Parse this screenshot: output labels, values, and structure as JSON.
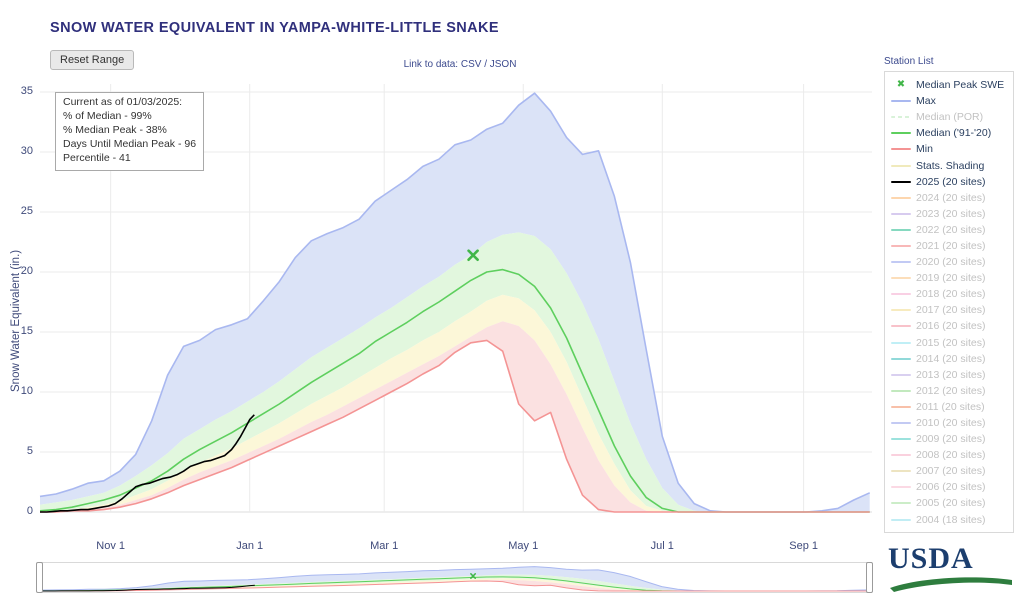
{
  "page": {
    "title": "SNOW WATER EQUIVALENT IN YAMPA-WHITE-LITTLE SNAKE",
    "reset_range_button": "Reset Range",
    "link_to_data_prefix": "Link to data:",
    "csv_link": "CSV",
    "link_separator": "/",
    "json_link": "JSON",
    "station_list_label": "Station List",
    "usda_logo_text": "USDA",
    "title_color": "#30307c",
    "accent_text_color": "#3c4a8e"
  },
  "annotation": {
    "lines": [
      "Current as of 01/03/2025:",
      "% of Median - 99%",
      "% Median Peak - 38%",
      "Days Until Median Peak - 96",
      "Percentile - 41"
    ]
  },
  "legend": {
    "items": [
      {
        "label": "Median Peak SWE",
        "marker": "x",
        "color": "#41b649",
        "active": true
      },
      {
        "label": "Max",
        "marker": "line",
        "color": "#a9b8f0",
        "active": true
      },
      {
        "label": "Median (POR)",
        "marker": "dash",
        "color": "#c9ecc9",
        "active": false
      },
      {
        "label": "Median ('91-'20)",
        "marker": "line",
        "color": "#5ecf5e",
        "active": true
      },
      {
        "label": "Min",
        "marker": "line",
        "color": "#f49494",
        "active": true
      },
      {
        "label": "Stats. Shading",
        "marker": "line",
        "color": "#f0eabc",
        "active": true
      },
      {
        "label": "2025 (20 sites)",
        "marker": "line",
        "color": "#000000",
        "active": true
      },
      {
        "label": "2024 (20 sites)",
        "marker": "line",
        "color": "#fcc48c",
        "active": false
      },
      {
        "label": "2023 (20 sites)",
        "marker": "line",
        "color": "#c6b5e8",
        "active": false
      },
      {
        "label": "2022 (20 sites)",
        "marker": "line",
        "color": "#52c9a5",
        "active": false
      },
      {
        "label": "2021 (20 sites)",
        "marker": "line",
        "color": "#f59a9a",
        "active": false
      },
      {
        "label": "2020 (20 sites)",
        "marker": "line",
        "color": "#a8b4f0",
        "active": false
      },
      {
        "label": "2019 (20 sites)",
        "marker": "line",
        "color": "#fbd09c",
        "active": false
      },
      {
        "label": "2018 (20 sites)",
        "marker": "line",
        "color": "#f6bcd8",
        "active": false
      },
      {
        "label": "2017 (20 sites)",
        "marker": "line",
        "color": "#f3e3a4",
        "active": false
      },
      {
        "label": "2016 (20 sites)",
        "marker": "line",
        "color": "#f5a8b4",
        "active": false
      },
      {
        "label": "2015 (20 sites)",
        "marker": "line",
        "color": "#a5e8f2",
        "active": false
      },
      {
        "label": "2014 (20 sites)",
        "marker": "line",
        "color": "#62c9c9",
        "active": false
      },
      {
        "label": "2013 (20 sites)",
        "marker": "line",
        "color": "#c9bce9",
        "active": false
      },
      {
        "label": "2012 (20 sites)",
        "marker": "line",
        "color": "#a8e0a2",
        "active": false
      },
      {
        "label": "2011 (20 sites)",
        "marker": "line",
        "color": "#f5a585",
        "active": false
      },
      {
        "label": "2010 (20 sites)",
        "marker": "line",
        "color": "#a9b4ee",
        "active": false
      },
      {
        "label": "2009 (20 sites)",
        "marker": "line",
        "color": "#72d5cf",
        "active": false
      },
      {
        "label": "2008 (20 sites)",
        "marker": "line",
        "color": "#f8bdd0",
        "active": false
      },
      {
        "label": "2007 (20 sites)",
        "marker": "line",
        "color": "#e6d9a6",
        "active": false
      },
      {
        "label": "2006 (20 sites)",
        "marker": "line",
        "color": "#fac9d9",
        "active": false
      },
      {
        "label": "2005 (20 sites)",
        "marker": "line",
        "color": "#b7e6b1",
        "active": false
      },
      {
        "label": "2004 (18 sites)",
        "marker": "line",
        "color": "#a7e6ef",
        "active": false
      }
    ]
  },
  "chart_data": {
    "type": "line",
    "title": "SNOW WATER EQUIVALENT IN YAMPA-WHITE-LITTLE SNAKE",
    "xlabel": "",
    "ylabel": "Snow Water Equivalent (in.)",
    "ylim": [
      0,
      35
    ],
    "yticks": [
      0,
      5,
      10,
      15,
      20,
      25,
      30,
      35
    ],
    "x_unit": "day_of_water_year_from_Oct_1",
    "x_range": [
      0,
      365
    ],
    "grid": true,
    "legend_position": "right",
    "xticks": [
      {
        "day": 31,
        "label": "Nov 1"
      },
      {
        "day": 92,
        "label": "Jan 1"
      },
      {
        "day": 151,
        "label": "Mar 1"
      },
      {
        "day": 212,
        "label": "May 1"
      },
      {
        "day": 273,
        "label": "Jul 1"
      },
      {
        "day": 335,
        "label": "Sep 1"
      }
    ],
    "x": [
      0,
      7,
      14,
      21,
      28,
      35,
      42,
      49,
      56,
      63,
      70,
      77,
      84,
      91,
      98,
      105,
      112,
      119,
      126,
      133,
      140,
      147,
      154,
      161,
      168,
      175,
      182,
      189,
      196,
      203,
      210,
      217,
      224,
      231,
      238,
      245,
      252,
      259,
      266,
      273,
      280,
      287,
      294,
      301,
      308,
      315,
      322,
      329,
      336,
      343,
      350,
      357,
      364
    ],
    "series": [
      {
        "name": "Max",
        "color": "#a9b8f0",
        "values": [
          1.3,
          1.5,
          1.9,
          2.4,
          2.6,
          3.4,
          4.8,
          7.6,
          11.4,
          13.8,
          14.3,
          15.2,
          15.6,
          16.1,
          17.6,
          19.2,
          21.2,
          22.6,
          23.2,
          23.7,
          24.4,
          25.9,
          26.8,
          27.7,
          28.8,
          29.4,
          30.6,
          31.0,
          31.9,
          32.4,
          33.9,
          34.9,
          33.4,
          31.2,
          29.8,
          30.1,
          26.3,
          20.8,
          13.5,
          6.3,
          2.4,
          0.7,
          0.1,
          0,
          0,
          0,
          0,
          0,
          0,
          0.1,
          0.3,
          1.0,
          1.6
        ]
      },
      {
        "name": "p70",
        "color": "#dbe3f7",
        "values": [
          0.6,
          0.8,
          1.0,
          1.3,
          1.6,
          2.2,
          3.0,
          3.9,
          4.9,
          6.1,
          6.9,
          7.7,
          8.4,
          9.2,
          10.0,
          10.9,
          11.9,
          12.9,
          13.7,
          14.5,
          15.3,
          16.2,
          17.0,
          17.9,
          18.8,
          19.6,
          20.6,
          21.4,
          22.5,
          23.1,
          23.3,
          23.0,
          21.9,
          19.9,
          17.4,
          14.4,
          10.9,
          7.4,
          4.4,
          2.0,
          0.6,
          0.1,
          0,
          0,
          0,
          0,
          0,
          0,
          0,
          0,
          0,
          0,
          0
        ]
      },
      {
        "name": "Median ('91-'20)",
        "color": "#5ecf5e",
        "values": [
          0.1,
          0.2,
          0.4,
          0.7,
          1.0,
          1.4,
          2.0,
          2.6,
          3.4,
          4.4,
          5.2,
          5.9,
          6.6,
          7.4,
          8.2,
          9.0,
          9.9,
          10.8,
          11.6,
          12.4,
          13.2,
          14.2,
          15.0,
          15.8,
          16.7,
          17.5,
          18.4,
          19.3,
          20.0,
          20.2,
          19.8,
          18.8,
          17.0,
          14.5,
          11.5,
          8.5,
          5.5,
          3.0,
          1.2,
          0.3,
          0,
          0,
          0,
          0,
          0,
          0,
          0,
          0,
          0,
          0,
          0,
          0,
          0
        ]
      },
      {
        "name": "p30",
        "color": "#e2f7de",
        "values": [
          0,
          0.1,
          0.2,
          0.4,
          0.6,
          0.9,
          1.4,
          1.9,
          2.6,
          3.4,
          4.1,
          4.7,
          5.3,
          6.0,
          6.7,
          7.4,
          8.2,
          9.0,
          9.7,
          10.4,
          11.2,
          12.0,
          12.8,
          13.5,
          14.3,
          15.0,
          15.9,
          16.7,
          17.6,
          18.1,
          17.8,
          16.8,
          15.0,
          12.5,
          9.5,
          6.5,
          4.0,
          1.8,
          0.5,
          0.1,
          0,
          0,
          0,
          0,
          0,
          0,
          0,
          0,
          0,
          0,
          0,
          0,
          0
        ]
      },
      {
        "name": "p10",
        "color": "#fcf7d8",
        "values": [
          0,
          0,
          0.1,
          0.2,
          0.4,
          0.6,
          1.0,
          1.4,
          2.0,
          2.7,
          3.3,
          3.8,
          4.3,
          4.9,
          5.5,
          6.1,
          6.8,
          7.5,
          8.1,
          8.8,
          9.5,
          10.2,
          10.9,
          11.6,
          12.3,
          13.0,
          13.8,
          14.6,
          15.4,
          15.9,
          15.5,
          14.3,
          12.3,
          9.8,
          7.0,
          4.3,
          2.2,
          0.8,
          0.1,
          0,
          0,
          0,
          0,
          0,
          0,
          0,
          0,
          0,
          0,
          0,
          0,
          0,
          0
        ]
      },
      {
        "name": "Min",
        "color": "#f49494",
        "values": [
          0,
          0,
          0.1,
          0.1,
          0.2,
          0.4,
          0.7,
          1.1,
          1.6,
          2.2,
          2.7,
          3.2,
          3.7,
          4.3,
          4.9,
          5.5,
          6.1,
          6.7,
          7.3,
          7.9,
          8.6,
          9.3,
          10.0,
          10.7,
          11.5,
          12.2,
          13.3,
          14.1,
          14.3,
          13.4,
          9.0,
          7.6,
          8.3,
          4.4,
          1.4,
          0.2,
          0,
          0,
          0,
          0,
          0,
          0,
          0,
          0,
          0,
          0,
          0,
          0,
          0,
          0,
          0,
          0,
          0
        ]
      }
    ],
    "bands": [
      {
        "upper": "Max",
        "lower": "p70",
        "fill": "#dbe3f7"
      },
      {
        "upper": "p70",
        "lower": "p30",
        "fill": "#e2f7de"
      },
      {
        "upper": "p30",
        "lower": "p10",
        "fill": "#fcf7d8"
      },
      {
        "upper": "p10",
        "lower": "Min",
        "fill": "#fbe1e1"
      }
    ],
    "line_series": [
      "Max",
      "Median ('91-'20)",
      "Min"
    ],
    "current_year": {
      "name": "2025 (20 sites)",
      "color": "#000000",
      "x": [
        0,
        3,
        6,
        9,
        12,
        15,
        18,
        21,
        24,
        27,
        30,
        33,
        36,
        39,
        42,
        45,
        48,
        51,
        54,
        57,
        60,
        63,
        66,
        69,
        72,
        75,
        78,
        81,
        84,
        86,
        88,
        90,
        92,
        94
      ],
      "values": [
        0,
        0,
        0.05,
        0.1,
        0.1,
        0.15,
        0.2,
        0.2,
        0.3,
        0.4,
        0.5,
        0.7,
        1.1,
        1.6,
        2.1,
        2.3,
        2.4,
        2.6,
        2.8,
        2.9,
        3.1,
        3.4,
        3.8,
        4.0,
        4.2,
        4.3,
        4.5,
        4.7,
        5.2,
        5.7,
        6.3,
        7.0,
        7.7,
        8.1
      ]
    },
    "median_peak_marker": {
      "x": 190,
      "y": 21.4,
      "color": "#41b649",
      "symbol": "x"
    }
  }
}
